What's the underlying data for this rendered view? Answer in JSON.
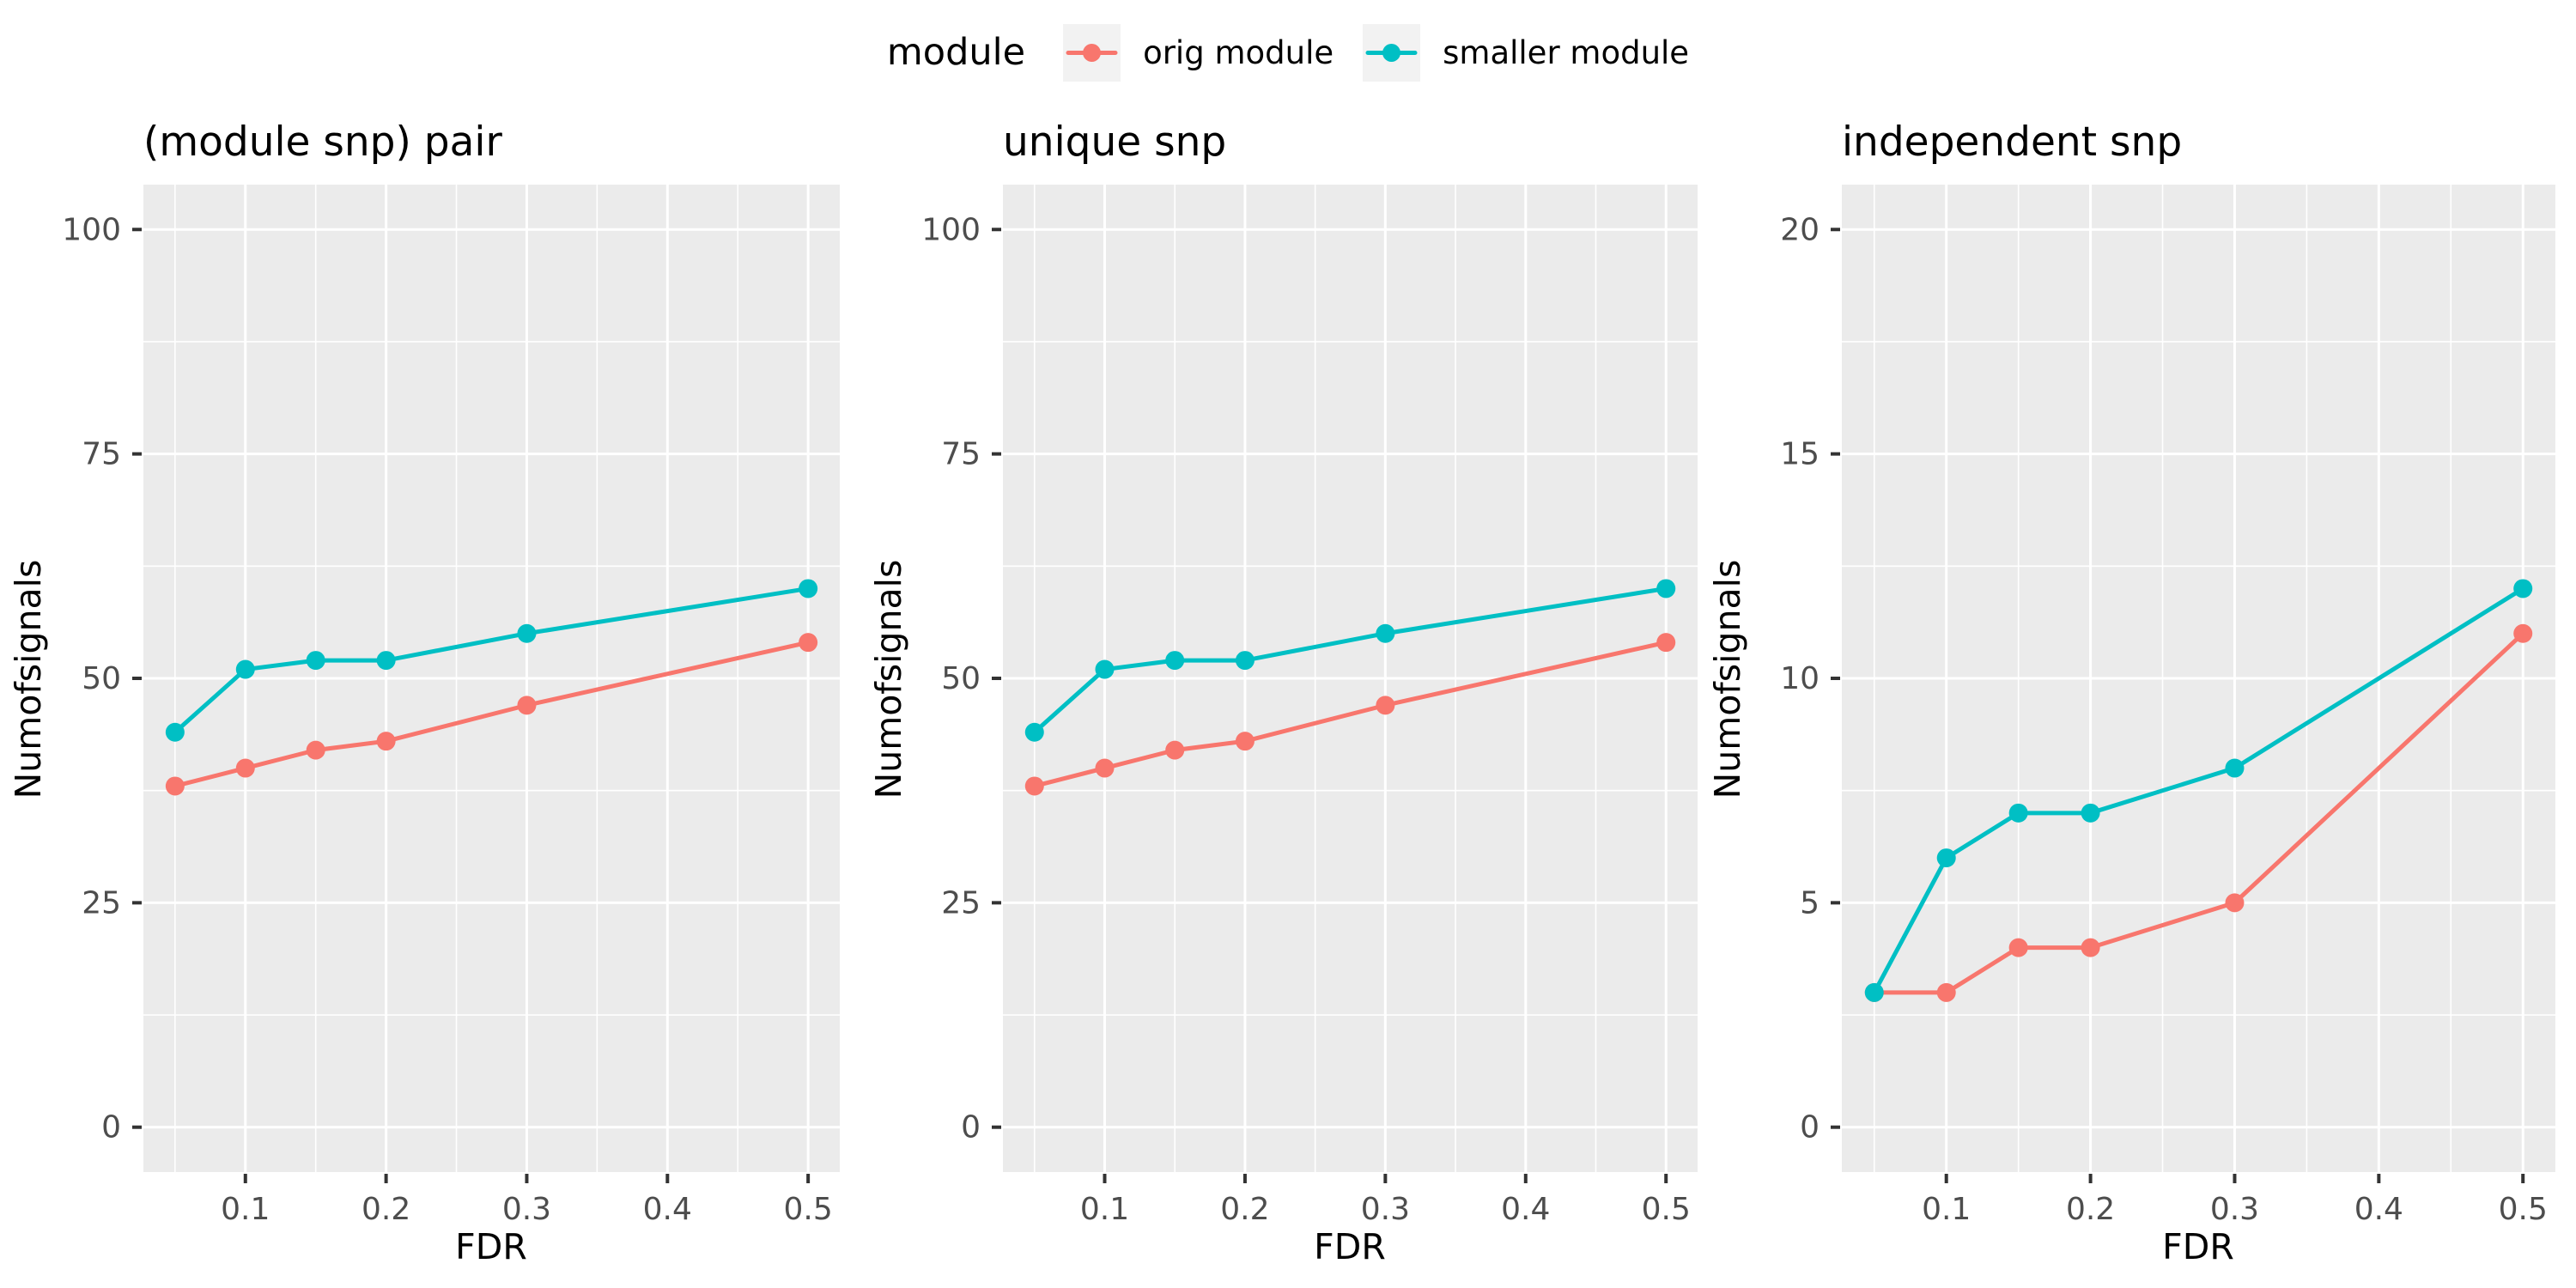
{
  "figure": {
    "background": "#FFFFFF",
    "panel_background": "#EBEBEB",
    "grid_color": "#FFFFFF",
    "tick_mark_color": "#333333",
    "tick_label_color": "#4D4D4D",
    "text_color": "#000000"
  },
  "legend": {
    "title": "module",
    "position": "top",
    "key_background": "#F2F2F2",
    "items": [
      {
        "label": "orig module",
        "color": "#F8766D"
      },
      {
        "label": "smaller module",
        "color": "#00BFC4"
      }
    ]
  },
  "chart_data": [
    {
      "type": "line",
      "title": "(module snp) pair",
      "xlabel": "FDR",
      "ylabel": "Numofsignals",
      "x": [
        0.05,
        0.1,
        0.15,
        0.2,
        0.3,
        0.5
      ],
      "series": [
        {
          "name": "orig module",
          "color": "#F8766D",
          "values": [
            38,
            40,
            42,
            43,
            47,
            54
          ]
        },
        {
          "name": "smaller module",
          "color": "#00BFC4",
          "values": [
            44,
            51,
            52,
            52,
            55,
            60
          ]
        }
      ],
      "xticks": [
        "0.1",
        "0.2",
        "0.3",
        "0.4",
        "0.5"
      ],
      "yticks": [
        "0",
        "25",
        "50",
        "75",
        "100"
      ],
      "xlim": [
        0.0275,
        0.5225
      ],
      "ylim": [
        -5,
        105
      ],
      "grid": true,
      "legend_position": "top"
    },
    {
      "type": "line",
      "title": "unique snp",
      "xlabel": "FDR",
      "ylabel": "Numofsignals",
      "x": [
        0.05,
        0.1,
        0.15,
        0.2,
        0.3,
        0.5
      ],
      "series": [
        {
          "name": "orig module",
          "color": "#F8766D",
          "values": [
            38,
            40,
            42,
            43,
            47,
            54
          ]
        },
        {
          "name": "smaller module",
          "color": "#00BFC4",
          "values": [
            44,
            51,
            52,
            52,
            55,
            60
          ]
        }
      ],
      "xticks": [
        "0.1",
        "0.2",
        "0.3",
        "0.4",
        "0.5"
      ],
      "yticks": [
        "0",
        "25",
        "50",
        "75",
        "100"
      ],
      "xlim": [
        0.0275,
        0.5225
      ],
      "ylim": [
        -5,
        105
      ],
      "grid": true,
      "legend_position": "top"
    },
    {
      "type": "line",
      "title": "independent snp",
      "xlabel": "FDR",
      "ylabel": "Numofsignals",
      "x": [
        0.05,
        0.1,
        0.15,
        0.2,
        0.3,
        0.5
      ],
      "series": [
        {
          "name": "orig module",
          "color": "#F8766D",
          "values": [
            3,
            3,
            4,
            4,
            5,
            11
          ]
        },
        {
          "name": "smaller module",
          "color": "#00BFC4",
          "values": [
            3,
            6,
            7,
            7,
            8,
            12
          ]
        }
      ],
      "xticks": [
        "0.1",
        "0.2",
        "0.3",
        "0.4",
        "0.5"
      ],
      "yticks": [
        "0",
        "5",
        "10",
        "15",
        "20"
      ],
      "xlim": [
        0.0275,
        0.5225
      ],
      "ylim": [
        -1,
        21
      ],
      "grid": true,
      "legend_position": "top"
    }
  ]
}
